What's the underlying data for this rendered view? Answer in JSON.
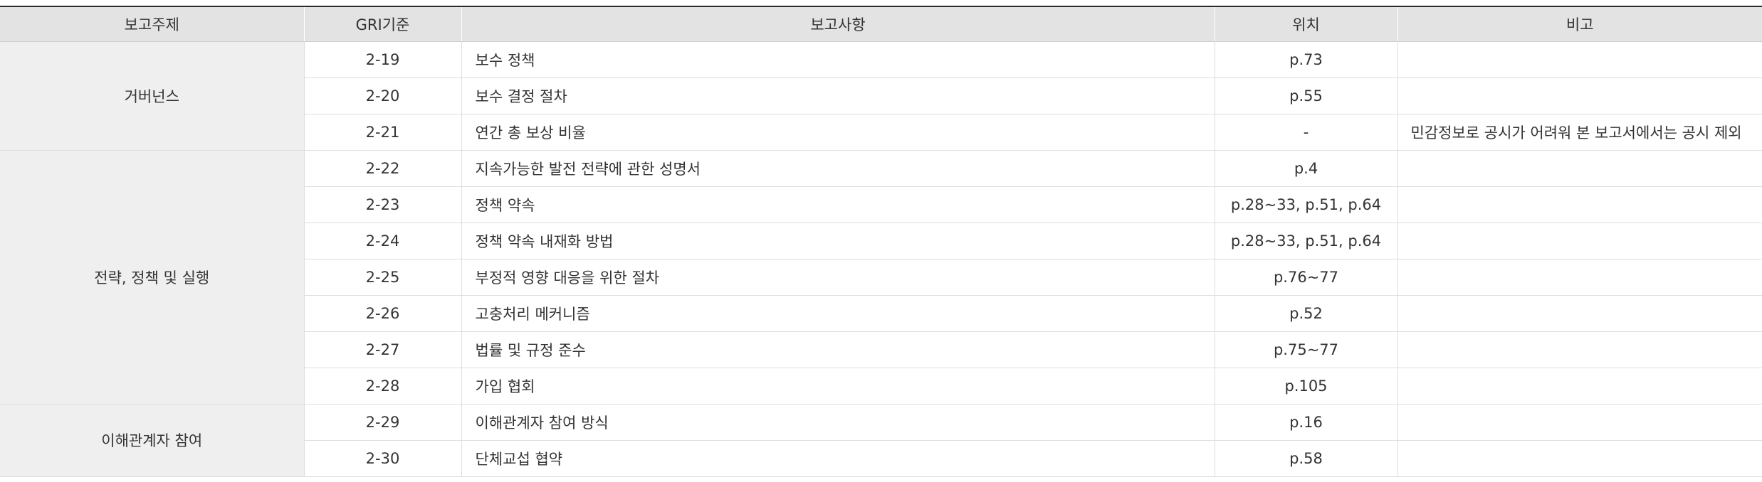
{
  "table": {
    "headers": [
      "보고주제",
      "GRI기준",
      "보고사항",
      "위치",
      "비고"
    ],
    "groups": [
      {
        "topic": "거버넌스",
        "rows": [
          {
            "code": "2-19",
            "item": "보수 정책",
            "location": "p.73",
            "note": ""
          },
          {
            "code": "2-20",
            "item": "보수 결정 절차",
            "location": "p.55",
            "note": ""
          },
          {
            "code": "2-21",
            "item": "연간 총 보상 비율",
            "location": "-",
            "note": "민감정보로 공시가 어려워 본 보고서에서는 공시 제외"
          }
        ]
      },
      {
        "topic": "전략, 정책 및 실행",
        "rows": [
          {
            "code": "2-22",
            "item": "지속가능한 발전 전략에 관한 성명서",
            "location": "p.4",
            "note": ""
          },
          {
            "code": "2-23",
            "item": "정책 약속",
            "location": "p.28~33, p.51, p.64",
            "note": ""
          },
          {
            "code": "2-24",
            "item": "정책 약속 내재화 방법",
            "location": "p.28~33, p.51, p.64",
            "note": ""
          },
          {
            "code": "2-25",
            "item": "부정적 영향 대응을 위한 절차",
            "location": "p.76~77",
            "note": ""
          },
          {
            "code": "2-26",
            "item": "고충처리 메커니즘",
            "location": "p.52",
            "note": ""
          },
          {
            "code": "2-27",
            "item": "법률 및 규정 준수",
            "location": "p.75~77",
            "note": ""
          },
          {
            "code": "2-28",
            "item": "가입 협회",
            "location": "p.105",
            "note": ""
          }
        ]
      },
      {
        "topic": "이해관계자 참여",
        "rows": [
          {
            "code": "2-29",
            "item": "이해관계자 참여 방식",
            "location": "p.16",
            "note": ""
          },
          {
            "code": "2-30",
            "item": "단체교섭 협약",
            "location": "p.58",
            "note": ""
          }
        ]
      }
    ]
  }
}
